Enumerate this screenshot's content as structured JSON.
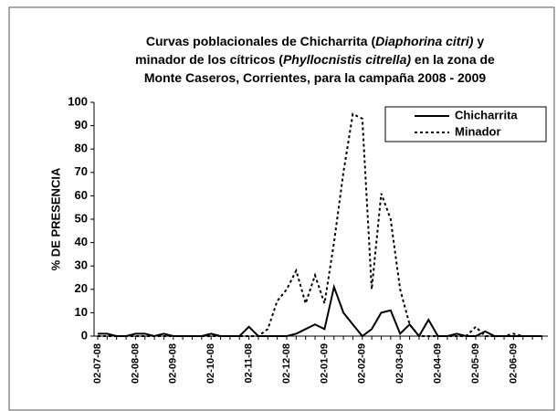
{
  "chart_data": {
    "type": "line",
    "title": [
      [
        "Curvas poblacionales de Chicharrita (",
        "Diaphorina citri)",
        " y"
      ],
      [
        "minador de los cítricos (",
        "Phyllocnistis citrella)",
        " en la zona de"
      ],
      [
        "Monte Caseros, Corrientes, para la campaña 2008 - 2009"
      ]
    ],
    "y_label": "% DE PRESENCIA",
    "categories": [
      "02-07-08",
      null,
      null,
      null,
      "02-08-08",
      null,
      null,
      null,
      "02-09-08",
      null,
      null,
      null,
      "02-10-08",
      null,
      null,
      null,
      "02-11-08",
      null,
      null,
      null,
      "02-12-08",
      null,
      null,
      null,
      "02-01-09",
      null,
      null,
      null,
      "02-02-09",
      null,
      null,
      null,
      "02-03-09",
      null,
      null,
      null,
      "02-04-09",
      null,
      null,
      null,
      "02-05-09",
      null,
      null,
      null,
      "02-06-09",
      null,
      null,
      null
    ],
    "series": [
      {
        "name": "Chicharrita",
        "color": "#000000",
        "dash": "solid",
        "values": [
          1,
          1,
          0,
          0,
          1,
          1,
          0,
          1,
          0,
          0,
          0,
          0,
          1,
          0,
          0,
          0,
          4,
          0,
          0,
          0,
          0,
          1,
          3,
          5,
          3,
          21,
          10,
          5,
          0,
          3,
          10,
          11,
          1,
          5,
          0,
          7,
          0,
          0,
          1,
          0,
          0,
          2,
          0,
          0,
          0,
          0,
          0,
          0
        ]
      },
      {
        "name": "Minador",
        "color": "#000000",
        "dash": "dashed",
        "values": [
          0,
          0,
          0,
          0,
          0,
          0,
          0,
          0,
          0,
          0,
          0,
          0,
          0,
          0,
          0,
          0,
          0,
          0,
          3,
          15,
          20,
          28,
          14,
          26,
          14,
          40,
          70,
          95,
          93,
          20,
          61,
          50,
          20,
          5,
          0,
          0,
          0,
          0,
          0,
          0,
          4,
          0,
          0,
          0,
          1,
          0,
          0,
          0
        ]
      }
    ],
    "ylim": [
      0,
      100
    ],
    "yticks": [
      0,
      10,
      20,
      30,
      40,
      50,
      60,
      70,
      80,
      90,
      100
    ],
    "legend": "upper right",
    "grid": false
  }
}
